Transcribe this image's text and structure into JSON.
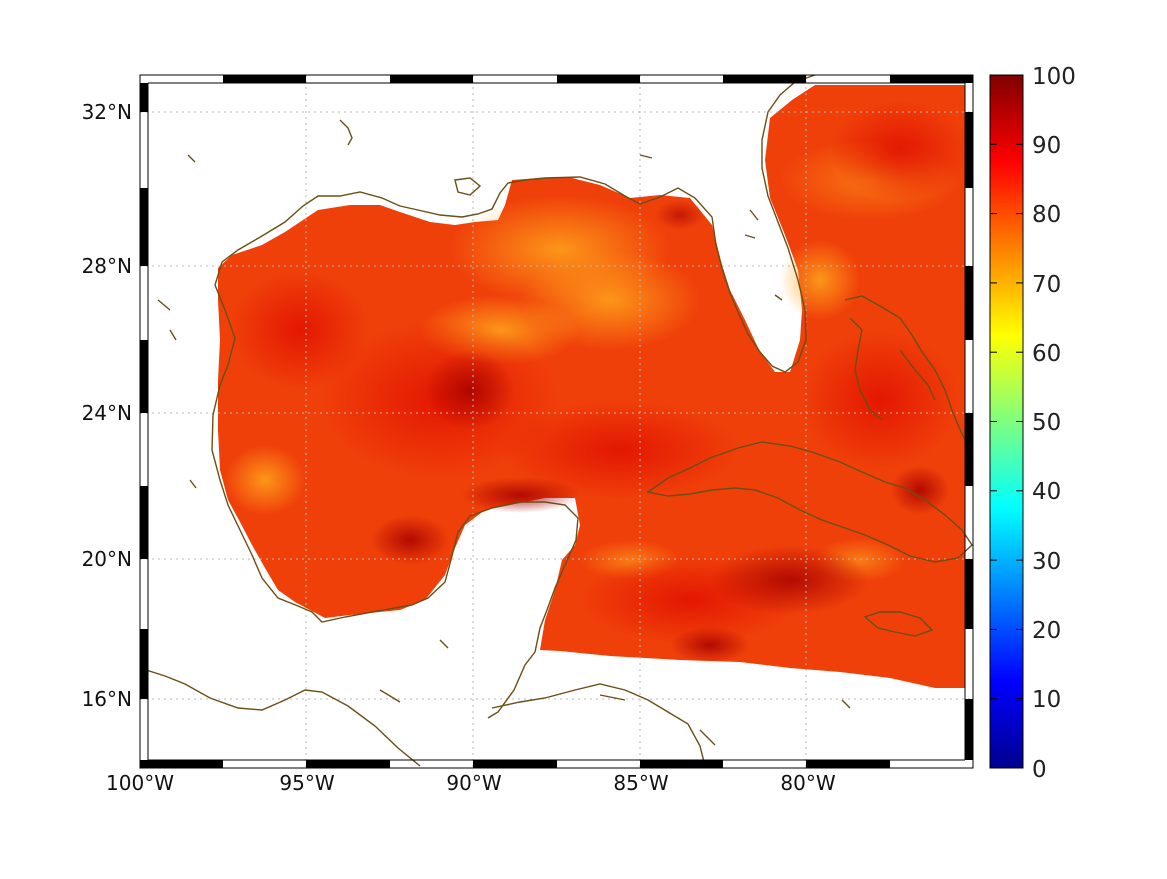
{
  "map": {
    "longitude_labels": [
      "100°W",
      "95°W",
      "90°W",
      "85°W",
      "80°W"
    ],
    "latitude_labels": [
      "32°N",
      "28°N",
      "24°N",
      "20°N",
      "16°N"
    ],
    "lon_range": [
      -100,
      -75
    ],
    "lat_range": [
      14,
      33
    ],
    "coastline_color": "#6b4e16",
    "gridlines": "dotted",
    "frame": "black-and-white alternating border"
  },
  "colorbar": {
    "colormap": "jet",
    "ticks": [
      "100",
      "90",
      "80",
      "70",
      "60",
      "50",
      "40",
      "30",
      "20",
      "10",
      "0"
    ],
    "range": [
      0,
      100
    ]
  },
  "field": {
    "typical_range": [
      70,
      100
    ],
    "dominant_colors": [
      "#ff6a00",
      "#e81a00",
      "#b30000",
      "#ffa21e"
    ]
  }
}
